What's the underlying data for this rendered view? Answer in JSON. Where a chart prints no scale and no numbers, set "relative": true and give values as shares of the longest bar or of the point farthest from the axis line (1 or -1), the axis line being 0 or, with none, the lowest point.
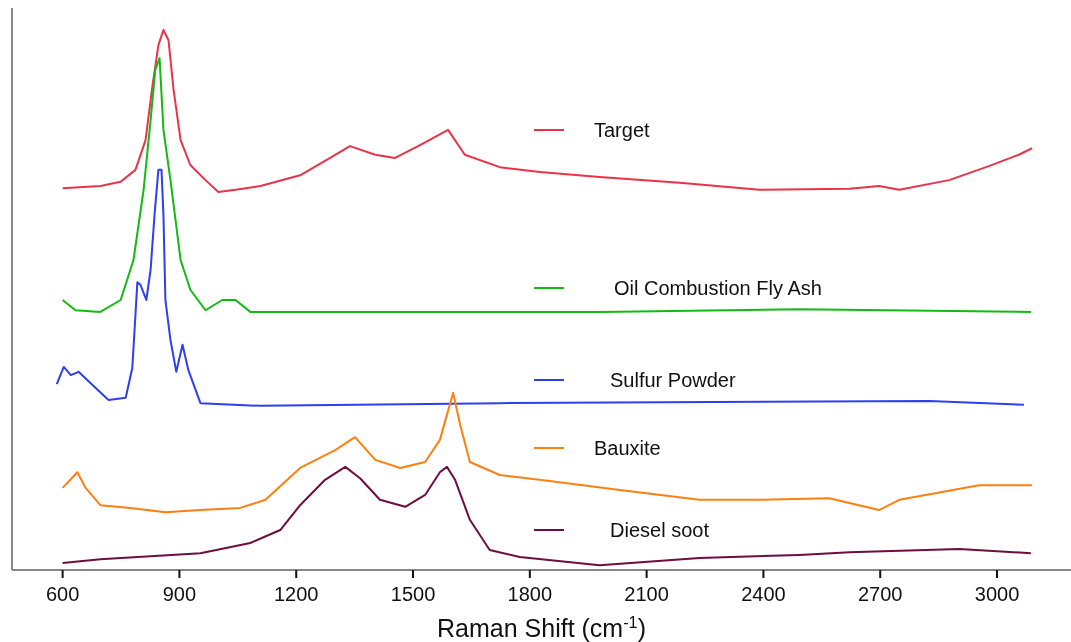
{
  "chart_data": {
    "type": "line",
    "relative": true,
    "xlabel": "Raman Shift (cm$^{-1}$)",
    "xlim": [
      470,
      3190
    ],
    "xticks": [
      600,
      900,
      1200,
      1500,
      1800,
      2100,
      2400,
      2700,
      3000
    ],
    "legend": "right",
    "grid": false,
    "line_style": "solid",
    "series": [
      {
        "name": "Target",
        "color": "#e8334a",
        "x": [
          600,
          697,
          749,
          787,
          813,
          831,
          846,
          859,
          872,
          885,
          903,
          928,
          967,
          1000,
          1044,
          1108,
          1210,
          1287,
          1338,
          1403,
          1454,
          1518,
          1590,
          1633,
          1723,
          1826,
          1979,
          2185,
          2390,
          2621,
          2697,
          2749,
          2877,
          2979,
          3056,
          3090
        ],
        "values": [
          0.707,
          0.711,
          0.719,
          0.741,
          0.796,
          0.898,
          0.972,
          1.0,
          0.981,
          0.889,
          0.796,
          0.75,
          0.722,
          0.7,
          0.704,
          0.711,
          0.731,
          0.763,
          0.785,
          0.769,
          0.763,
          0.787,
          0.815,
          0.769,
          0.746,
          0.737,
          0.728,
          0.717,
          0.704,
          0.706,
          0.711,
          0.704,
          0.722,
          0.748,
          0.769,
          0.781
        ]
      },
      {
        "name": "Oil Combustion Fly Ash",
        "color": "#11bb11",
        "x": [
          600,
          633,
          697,
          749,
          782,
          808,
          826,
          838,
          849,
          859,
          877,
          903,
          928,
          967,
          1010,
          1044,
          1082,
          1467,
          1979,
          2492,
          3087
        ],
        "values": [
          0.5,
          0.481,
          0.478,
          0.5,
          0.574,
          0.704,
          0.833,
          0.926,
          0.948,
          0.815,
          0.722,
          0.574,
          0.519,
          0.481,
          0.5,
          0.5,
          0.478,
          0.478,
          0.478,
          0.483,
          0.478
        ]
      },
      {
        "name": "Sulfur Powder",
        "color": "#2e3ef0",
        "x": [
          585,
          603,
          621,
          641,
          685,
          718,
          762,
          779,
          792,
          800,
          815,
          826,
          836,
          846,
          854,
          859,
          864,
          877,
          892,
          908,
          923,
          954,
          1108,
          1723,
          2826,
          3069
        ],
        "values": [
          0.344,
          0.376,
          0.361,
          0.367,
          0.337,
          0.315,
          0.319,
          0.374,
          0.533,
          0.528,
          0.5,
          0.556,
          0.657,
          0.741,
          0.741,
          0.657,
          0.5,
          0.426,
          0.367,
          0.417,
          0.37,
          0.309,
          0.304,
          0.309,
          0.313,
          0.306
        ]
      },
      {
        "name": "Bauxite",
        "color": "#ff8010",
        "x": [
          600,
          638,
          659,
          697,
          774,
          864,
          954,
          1056,
          1121,
          1210,
          1300,
          1351,
          1403,
          1467,
          1531,
          1569,
          1603,
          1621,
          1646,
          1723,
          1851,
          2031,
          2236,
          2390,
          2569,
          2697,
          2749,
          2954,
          3090
        ],
        "values": [
          0.152,
          0.181,
          0.152,
          0.12,
          0.115,
          0.107,
          0.111,
          0.115,
          0.13,
          0.189,
          0.222,
          0.246,
          0.204,
          0.189,
          0.2,
          0.241,
          0.328,
          0.269,
          0.2,
          0.176,
          0.165,
          0.148,
          0.13,
          0.13,
          0.133,
          0.111,
          0.13,
          0.157,
          0.157
        ]
      },
      {
        "name": "Diesel soot",
        "color": "#6e0d3f",
        "x": [
          600,
          697,
          954,
          1082,
          1159,
          1210,
          1274,
          1326,
          1364,
          1415,
          1480,
          1531,
          1569,
          1587,
          1608,
          1646,
          1697,
          1774,
          1979,
          2236,
          2492,
          2621,
          2903,
          3087
        ],
        "values": [
          0.013,
          0.02,
          0.031,
          0.05,
          0.074,
          0.12,
          0.167,
          0.191,
          0.17,
          0.13,
          0.117,
          0.139,
          0.181,
          0.191,
          0.167,
          0.093,
          0.037,
          0.024,
          0.009,
          0.022,
          0.028,
          0.033,
          0.039,
          0.031
        ]
      }
    ]
  }
}
